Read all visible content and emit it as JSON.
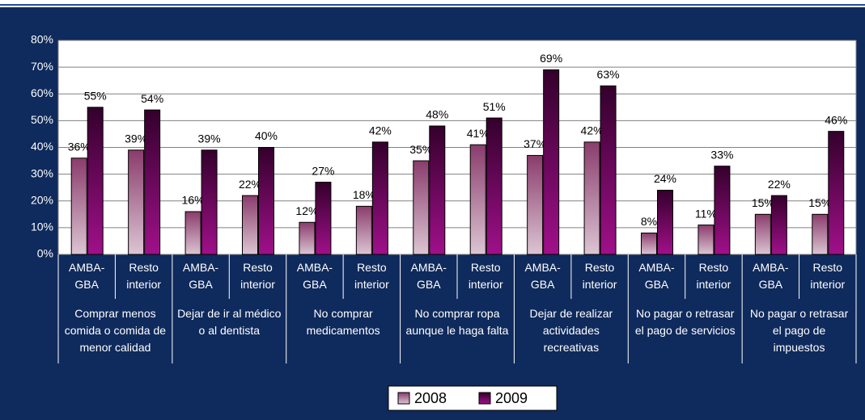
{
  "chart_data": {
    "type": "bar",
    "categories": [
      "AMBA-GBA",
      "Resto interior",
      "AMBA-GBA",
      "Resto interior",
      "AMBA-GBA",
      "Resto interior",
      "AMBA-GBA",
      "Resto interior",
      "AMBA-GBA",
      "Resto interior",
      "AMBA-GBA",
      "Resto interior",
      "AMBA-GBA",
      "Resto interior"
    ],
    "groups": [
      "Comprar menos comida o comida de menor calidad",
      "Dejar de ir al médico o al dentista",
      "No comprar medicamentos",
      "No comprar ropa aunque le haga falta",
      "Dejar de realizar actividades recreativas",
      "No pagar o retrasar el pago de servicios",
      "No pagar o retrasar el pago de impuestos"
    ],
    "series": [
      {
        "name": "2008",
        "color": "#8a3c6c",
        "values": [
          36,
          39,
          16,
          22,
          12,
          18,
          35,
          41,
          37,
          42,
          8,
          11,
          15,
          15
        ],
        "value_labels": [
          "36%",
          "39%",
          "16%",
          "22%",
          "12%",
          "18%",
          "35%",
          "41%",
          "37%",
          "42%",
          "8%",
          "11%",
          "15%",
          "15%"
        ]
      },
      {
        "name": "2009",
        "color": "#34002c",
        "values": [
          55,
          54,
          39,
          40,
          27,
          42,
          48,
          51,
          69,
          63,
          24,
          33,
          22,
          46
        ],
        "value_labels": [
          "55%",
          "54%",
          "39%",
          "40%",
          "27%",
          "42%",
          "48%",
          "51%",
          "69%",
          "63%",
          "24%",
          "33%",
          "22%",
          "46%"
        ]
      }
    ],
    "ylim": [
      0,
      80
    ],
    "yticks": [
      {
        "value": 0,
        "label": "0%"
      },
      {
        "value": 10,
        "label": "10%"
      },
      {
        "value": 20,
        "label": "20%"
      },
      {
        "value": 30,
        "label": "30%"
      },
      {
        "value": 40,
        "label": "40%"
      },
      {
        "value": 50,
        "label": "50%"
      },
      {
        "value": 60,
        "label": "60%"
      },
      {
        "value": 70,
        "label": "70%"
      },
      {
        "value": 80,
        "label": "80%"
      }
    ],
    "grid": true,
    "legend": "bottom"
  }
}
